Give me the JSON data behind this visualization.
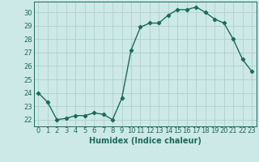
{
  "x": [
    0,
    1,
    2,
    3,
    4,
    5,
    6,
    7,
    8,
    9,
    10,
    11,
    12,
    13,
    14,
    15,
    16,
    17,
    18,
    19,
    20,
    21,
    22,
    23
  ],
  "y": [
    24.0,
    23.3,
    22.0,
    22.1,
    22.3,
    22.3,
    22.5,
    22.4,
    22.0,
    23.6,
    27.2,
    28.9,
    29.2,
    29.2,
    29.8,
    30.2,
    30.2,
    30.4,
    30.0,
    29.5,
    29.2,
    28.0,
    26.5,
    25.6
  ],
  "line_color": "#1a6b5a",
  "marker": "D",
  "markersize": 2.2,
  "linewidth": 1.0,
  "bg_color": "#cce9e7",
  "grid_color": "#b0cfcd",
  "xlabel": "Humidex (Indice chaleur)",
  "ylabel": "",
  "ylim": [
    21.5,
    30.8
  ],
  "yticks": [
    22,
    23,
    24,
    25,
    26,
    27,
    28,
    29,
    30
  ],
  "xticks": [
    0,
    1,
    2,
    3,
    4,
    5,
    6,
    7,
    8,
    9,
    10,
    11,
    12,
    13,
    14,
    15,
    16,
    17,
    18,
    19,
    20,
    21,
    22,
    23
  ],
  "xlabel_fontsize": 7.0,
  "tick_fontsize": 6.0
}
